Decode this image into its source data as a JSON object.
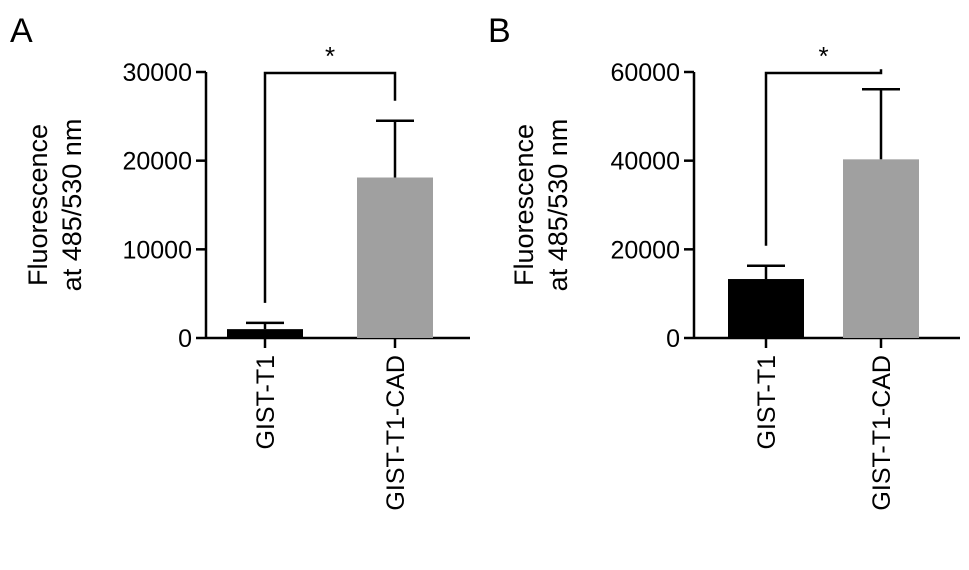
{
  "chart_data": [
    {
      "panel": "A",
      "type": "bar",
      "title": "",
      "xlabel": "",
      "ylabel_lines": [
        "Fluorescence",
        "at 485/530 nm"
      ],
      "ylim": [
        0,
        30000
      ],
      "yticks": [
        0,
        10000,
        20000,
        30000
      ],
      "yticklabels": [
        "0",
        "10000",
        "20000",
        "30000"
      ],
      "categories": [
        "GIST-T1",
        "GIST-T1-CAD"
      ],
      "values": [
        1000,
        18100
      ],
      "errors": [
        700,
        6400
      ],
      "colors": [
        "#000000",
        "#a0a0a0"
      ],
      "significance": {
        "between": [
          0,
          1
        ],
        "label": "*"
      },
      "grid": false,
      "legend": null
    },
    {
      "panel": "B",
      "type": "bar",
      "title": "",
      "xlabel": "",
      "ylabel_lines": [
        "Fluorescence",
        "at 485/530 nm"
      ],
      "ylim": [
        0,
        60000
      ],
      "yticks": [
        0,
        20000,
        40000,
        60000
      ],
      "yticklabels": [
        "0",
        "20000",
        "40000",
        "60000"
      ],
      "categories": [
        "GIST-T1",
        "GIST-T1-CAD"
      ],
      "values": [
        13300,
        40300
      ],
      "errors": [
        3000,
        15800
      ],
      "colors": [
        "#000000",
        "#a0a0a0"
      ],
      "significance": {
        "between": [
          0,
          1
        ],
        "label": "*"
      },
      "grid": false,
      "legend": null
    }
  ]
}
